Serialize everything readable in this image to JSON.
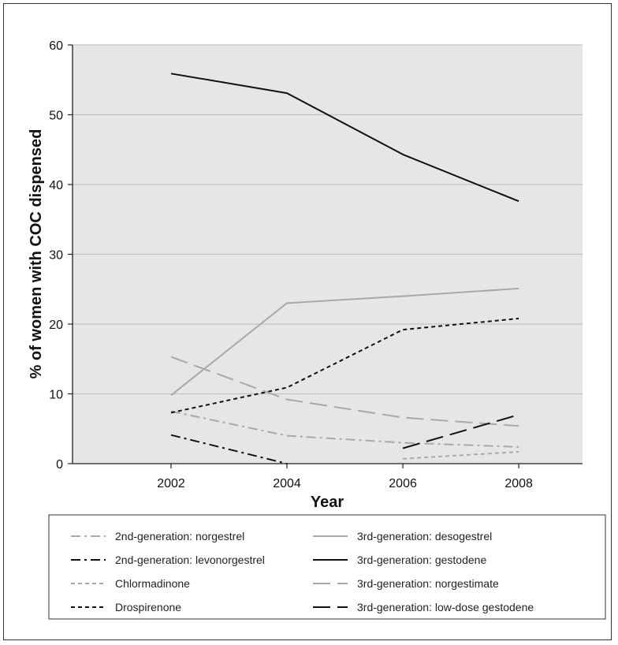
{
  "chart_data": {
    "type": "line",
    "title": "",
    "xlabel": "Year",
    "ylabel": "% of women with COC dispensed",
    "x": [
      2002,
      2004,
      2006,
      2008
    ],
    "xlim": [
      2000.3,
      2009.1
    ],
    "ylim": [
      0,
      60
    ],
    "yticks": [
      0,
      10,
      20,
      30,
      40,
      50,
      60
    ],
    "grid": true,
    "legend_position": "bottom",
    "series": [
      {
        "name": "2nd-generation: norgestrel",
        "color": "#a8a8a8",
        "dash": "dashdot",
        "points": [
          [
            2002,
            7.5
          ],
          [
            2004,
            4.0
          ],
          [
            2006,
            3.0
          ],
          [
            2008,
            2.4
          ]
        ]
      },
      {
        "name": "2nd-generation: levonorgestrel",
        "color": "#111111",
        "dash": "dashdot",
        "points": [
          [
            2002,
            4.1
          ],
          [
            2004,
            0.0
          ]
        ]
      },
      {
        "name": "Chlormadinone",
        "color": "#a8a8a8",
        "dash": "dashed",
        "points": [
          [
            2006,
            0.7
          ],
          [
            2008,
            1.7
          ]
        ]
      },
      {
        "name": "Drospirenone",
        "color": "#111111",
        "dash": "dashed",
        "points": [
          [
            2002,
            7.3
          ],
          [
            2004,
            10.9
          ],
          [
            2006,
            19.2
          ],
          [
            2008,
            20.8
          ]
        ]
      },
      {
        "name": "3rd-generation: desogestrel",
        "color": "#a8a8a8",
        "dash": "solid",
        "points": [
          [
            2002,
            9.8
          ],
          [
            2004,
            23.0
          ],
          [
            2006,
            24.0
          ],
          [
            2008,
            25.1
          ]
        ]
      },
      {
        "name": "3rd-generation: gestodene",
        "color": "#111111",
        "dash": "solid",
        "points": [
          [
            2002,
            55.9
          ],
          [
            2004,
            53.1
          ],
          [
            2006,
            44.3
          ],
          [
            2008,
            37.6
          ]
        ]
      },
      {
        "name": "3rd-generation: norgestimate",
        "color": "#a8a8a8",
        "dash": "longdash",
        "points": [
          [
            2002,
            15.3
          ],
          [
            2004,
            9.2
          ],
          [
            2006,
            6.6
          ],
          [
            2008,
            5.4
          ]
        ]
      },
      {
        "name": "3rd-generation: low-dose gestodene",
        "color": "#111111",
        "dash": "longdash",
        "points": [
          [
            2006,
            2.2
          ],
          [
            2008,
            7.0
          ]
        ]
      }
    ]
  }
}
